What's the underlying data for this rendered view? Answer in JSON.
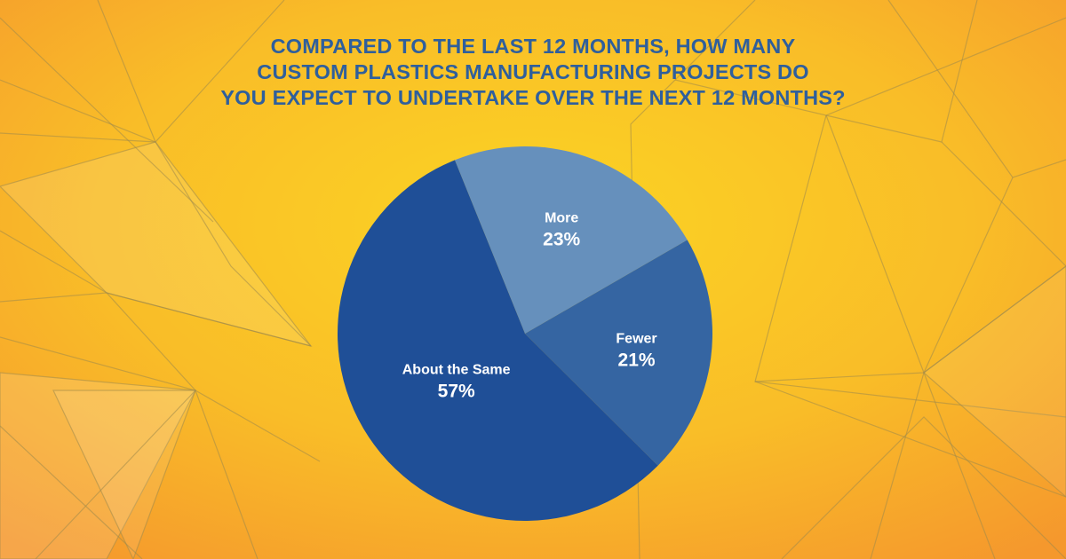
{
  "title_lines": [
    "COMPARED TO THE LAST 12 MONTHS, HOW MANY",
    "CUSTOM PLASTICS MANUFACTURING PROJECTS DO",
    "YOU EXPECT TO UNDERTAKE OVER THE NEXT 12 MONTHS?"
  ],
  "colors": {
    "background_center": "#fbd224",
    "background_edge": "#f6a12c",
    "title": "#2f5f9c",
    "slice_more": "#6690bc",
    "slice_fewer": "#3565a2",
    "slice_same": "#1f4f97"
  },
  "chart_data": {
    "type": "pie",
    "title": "COMPARED TO THE LAST 12 MONTHS, HOW MANY CUSTOM PLASTICS MANUFACTURING PROJECTS DO YOU EXPECT TO UNDERTAKE OVER THE NEXT 12 MONTHS?",
    "slices": [
      {
        "label": "More",
        "value": 23,
        "value_label": "23%",
        "color": "#6690bc"
      },
      {
        "label": "Fewer",
        "value": 21,
        "value_label": "21%",
        "color": "#3565a2"
      },
      {
        "label": "About the Same",
        "value": 57,
        "value_label": "57%",
        "color": "#1f4f97"
      }
    ],
    "legend": "none"
  }
}
